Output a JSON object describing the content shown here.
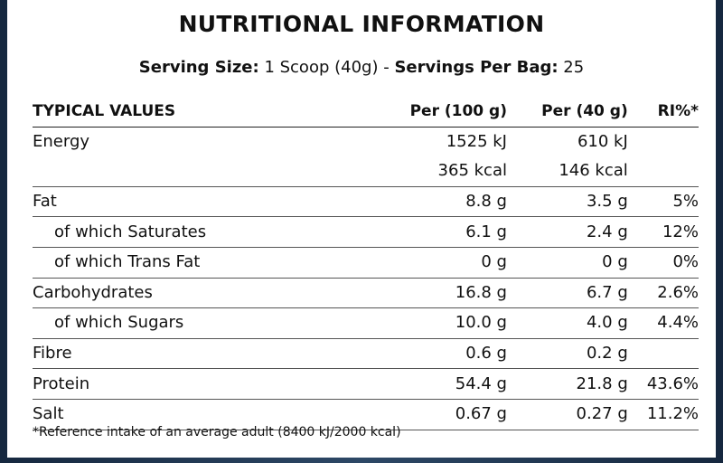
{
  "label": {
    "title": "NUTRITIONAL INFORMATION",
    "serving_size_label": "Serving Size:",
    "serving_size_value": " 1 Scoop (40g) - ",
    "servings_per_bag_label": "Servings Per Bag:",
    "servings_per_bag_value": " 25"
  },
  "table": {
    "headers": [
      "TYPICAL VALUES",
      "Per (100 g)",
      "Per (40 g)",
      "RI%*"
    ],
    "rows": [
      {
        "name": "Energy",
        "per100": "1525 kJ",
        "per40": "610 kJ",
        "ri": ""
      },
      {
        "name": "",
        "per100": "365 kcal",
        "per40": "146 kcal",
        "ri": ""
      },
      {
        "name": "Fat",
        "per100": "8.8 g",
        "per40": "3.5 g",
        "ri": "5%"
      },
      {
        "name": "of which Saturates",
        "per100": "6.1 g",
        "per40": "2.4 g",
        "ri": "12%"
      },
      {
        "name": "of which Trans Fat",
        "per100": "0 g",
        "per40": "0 g",
        "ri": "0%"
      },
      {
        "name": "Carbohydrates",
        "per100": "16.8 g",
        "per40": "6.7 g",
        "ri": "2.6%"
      },
      {
        "name": "of which Sugars",
        "per100": "10.0 g",
        "per40": "4.0 g",
        "ri": "4.4%"
      },
      {
        "name": "Fibre",
        "per100": "0.6 g",
        "per40": "0.2 g",
        "ri": ""
      },
      {
        "name": "Protein",
        "per100": "54.4 g",
        "per40": "21.8 g",
        "ri": "43.6%"
      },
      {
        "name": "Salt",
        "per100": "0.67 g",
        "per40": "0.27 g",
        "ri": "11.2%"
      }
    ]
  },
  "footnote": "*Reference intake of an average adult (8400 kJ/2000 kcal)"
}
